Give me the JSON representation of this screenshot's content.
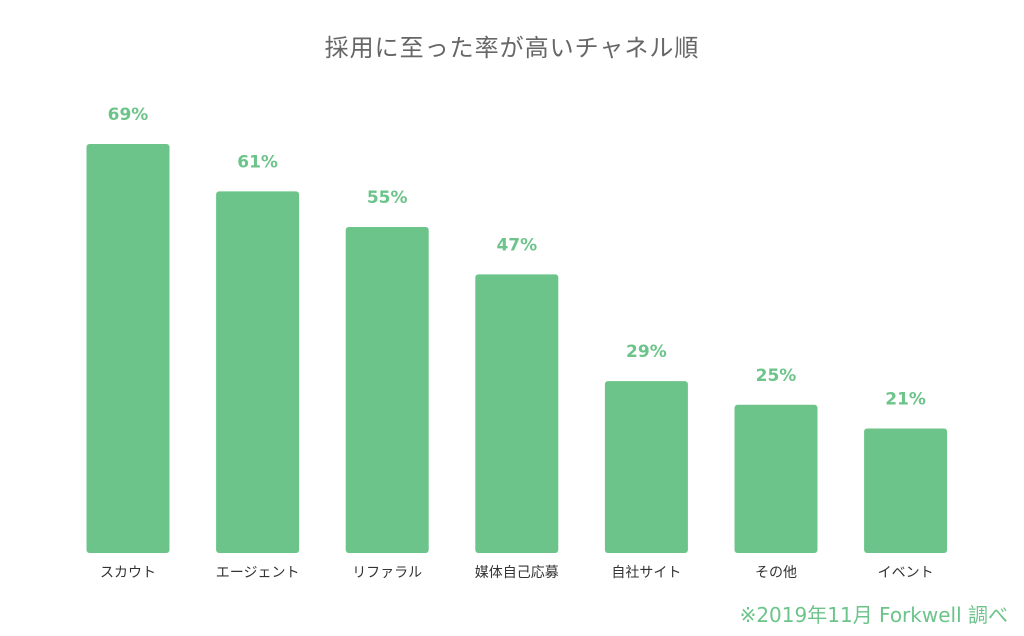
{
  "chart_data": {
    "type": "bar",
    "title": "採用に至った率が高いチャネル順",
    "categories": [
      "スカウト",
      "エージェント",
      "リファラル",
      "媒体自己応募",
      "自社サイト",
      "その他",
      "イベント"
    ],
    "values": [
      69,
      61,
      55,
      47,
      29,
      25,
      21
    ],
    "value_format": "{v}%",
    "ylim": [
      0,
      70
    ],
    "grid": false,
    "legend": "none",
    "xlabel": "",
    "ylabel": "",
    "colors": {
      "bar": "#6cc48a",
      "value_label": "#6cc48a",
      "category_label": "#333333",
      "title": "#666666"
    }
  },
  "footnote": "※2019年11月 Forkwell 調べ"
}
